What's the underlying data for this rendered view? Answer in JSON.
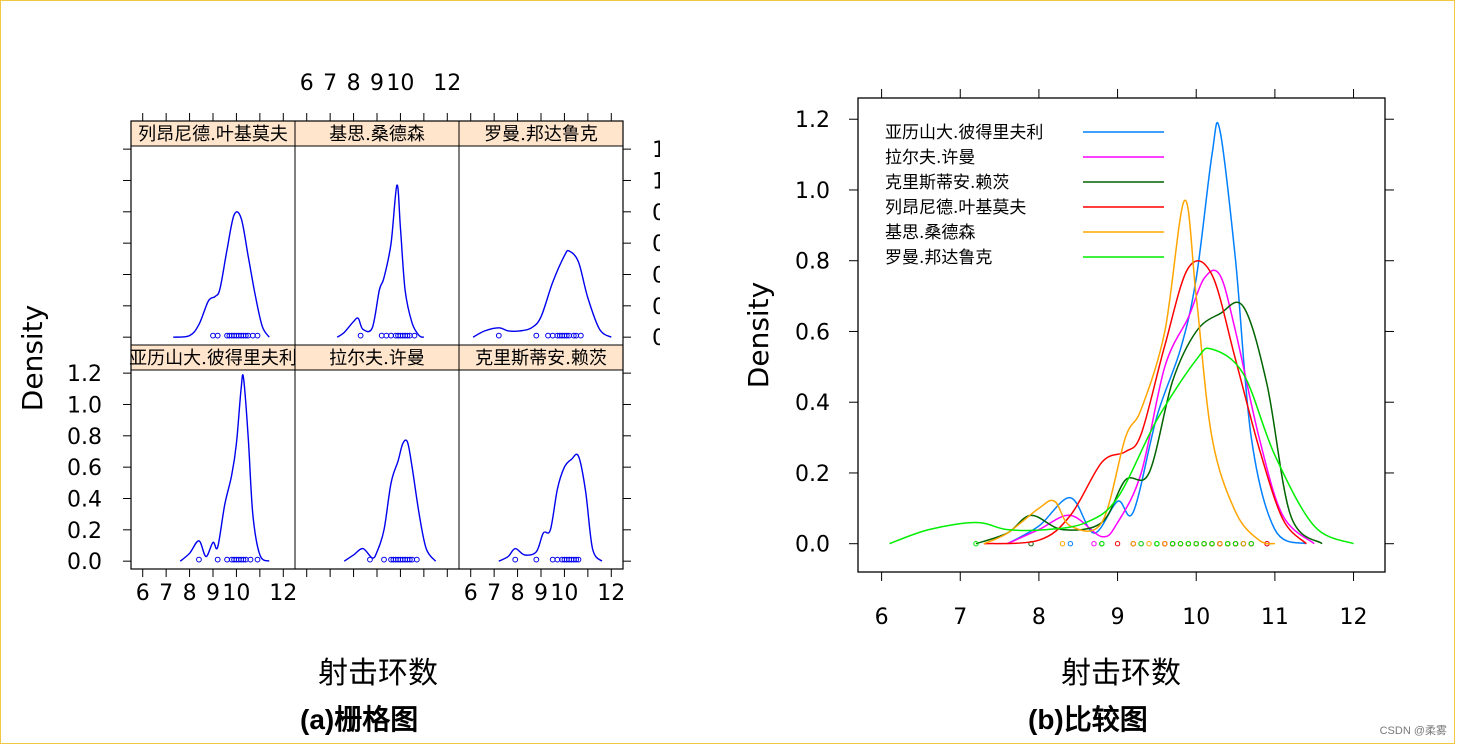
{
  "chart_data": [
    {
      "type": "line",
      "title": "",
      "xlabel": "射击环数",
      "ylabel": "Density",
      "xlim": [
        5.5,
        12.5
      ],
      "ylim": [
        -0.05,
        1.22
      ],
      "xticks": [
        6,
        7,
        8,
        9,
        10,
        12
      ],
      "yticks": [
        0.0,
        0.2,
        0.4,
        0.6,
        0.8,
        1.0,
        1.2
      ],
      "layout": "2x3 lattice grid",
      "line_color": "#0000ee",
      "strip_color": "#ffe5cc",
      "panels": [
        {
          "name": "列昂尼德.叶基莫夫",
          "x": [
            7.3,
            8.0,
            8.4,
            8.8,
            9.1,
            9.3,
            9.6,
            9.9,
            10.2,
            10.5,
            10.8,
            11.1,
            11.4
          ],
          "y": [
            0.0,
            0.01,
            0.08,
            0.23,
            0.26,
            0.31,
            0.56,
            0.78,
            0.76,
            0.52,
            0.27,
            0.07,
            0.0
          ],
          "points": [
            9.0,
            9.2,
            9.6,
            9.7,
            9.8,
            9.9,
            10.0,
            10.1,
            10.2,
            10.3,
            10.4,
            10.5,
            10.7,
            10.9
          ]
        },
        {
          "name": "基思.桑德森",
          "x": [
            7.3,
            7.6,
            8.0,
            8.2,
            8.4,
            8.8,
            9.1,
            9.3,
            9.6,
            9.85,
            10.0,
            10.2,
            10.5,
            10.8,
            11.0
          ],
          "y": [
            0.0,
            0.03,
            0.1,
            0.12,
            0.05,
            0.06,
            0.3,
            0.38,
            0.6,
            0.97,
            0.7,
            0.3,
            0.09,
            0.01,
            0.0
          ],
          "points": [
            8.3,
            9.2,
            9.4,
            9.6,
            9.8,
            9.9,
            10.0,
            10.1,
            10.2,
            10.3,
            10.4,
            10.6
          ]
        },
        {
          "name": "罗曼.邦达鲁克",
          "x": [
            6.1,
            6.6,
            7.2,
            7.6,
            8.1,
            8.6,
            9.0,
            9.5,
            10.0,
            10.2,
            10.6,
            11.0,
            11.5,
            12.0
          ],
          "y": [
            0.0,
            0.04,
            0.06,
            0.04,
            0.04,
            0.06,
            0.13,
            0.35,
            0.52,
            0.55,
            0.48,
            0.25,
            0.05,
            0.0
          ],
          "points": [
            7.2,
            8.8,
            9.3,
            9.5,
            9.7,
            9.8,
            9.9,
            10.0,
            10.1,
            10.2,
            10.4,
            10.5,
            10.7
          ]
        },
        {
          "name": "亚历山大.彼得里夫利",
          "x": [
            7.6,
            8.0,
            8.4,
            8.7,
            9.0,
            9.2,
            9.5,
            9.8,
            10.0,
            10.2,
            10.3,
            10.5,
            10.7,
            11.0,
            11.4
          ],
          "y": [
            0.0,
            0.05,
            0.13,
            0.03,
            0.12,
            0.09,
            0.36,
            0.55,
            0.75,
            1.1,
            1.17,
            0.8,
            0.3,
            0.04,
            0.0
          ],
          "points": [
            8.4,
            9.2,
            9.6,
            9.8,
            9.9,
            10.0,
            10.1,
            10.2,
            10.3,
            10.4,
            10.6,
            10.9
          ]
        },
        {
          "name": "拉尔夫.许曼",
          "x": [
            7.6,
            8.0,
            8.4,
            8.8,
            9.0,
            9.3,
            9.6,
            9.9,
            10.1,
            10.3,
            10.5,
            10.8,
            11.1,
            11.5
          ],
          "y": [
            0.0,
            0.04,
            0.08,
            0.02,
            0.06,
            0.2,
            0.5,
            0.64,
            0.75,
            0.76,
            0.6,
            0.3,
            0.08,
            0.0
          ],
          "points": [
            8.7,
            9.3,
            9.6,
            9.7,
            9.8,
            9.9,
            10.0,
            10.1,
            10.2,
            10.3,
            10.4,
            10.5,
            10.7
          ]
        },
        {
          "name": "克里斯蒂安.赖茨",
          "x": [
            7.2,
            7.6,
            7.9,
            8.3,
            8.8,
            9.1,
            9.4,
            9.7,
            10.0,
            10.3,
            10.6,
            10.9,
            11.2,
            11.6
          ],
          "y": [
            0.0,
            0.03,
            0.08,
            0.04,
            0.06,
            0.18,
            0.2,
            0.46,
            0.6,
            0.65,
            0.67,
            0.45,
            0.08,
            0.0
          ],
          "points": [
            7.9,
            8.8,
            9.5,
            9.7,
            9.9,
            10.0,
            10.1,
            10.2,
            10.3,
            10.4,
            10.5,
            10.6
          ]
        }
      ]
    },
    {
      "type": "line",
      "title": "",
      "xlabel": "射击环数",
      "ylabel": "Density",
      "xlim": [
        5.7,
        12.4
      ],
      "ylim": [
        -0.08,
        1.26
      ],
      "xticks": [
        6,
        7,
        8,
        9,
        10,
        11,
        12
      ],
      "yticks": [
        0.0,
        0.2,
        0.4,
        0.6,
        0.8,
        1.0,
        1.2
      ],
      "legend_position": "top-left",
      "series": [
        {
          "name": "亚历山大.彼得里夫利",
          "color": "#0080ff",
          "x": [
            7.6,
            8.0,
            8.4,
            8.7,
            9.0,
            9.2,
            9.5,
            9.8,
            10.0,
            10.2,
            10.3,
            10.5,
            10.7,
            11.0,
            11.4
          ],
          "y": [
            0.0,
            0.05,
            0.13,
            0.03,
            0.12,
            0.09,
            0.36,
            0.55,
            0.75,
            1.1,
            1.17,
            0.8,
            0.3,
            0.04,
            0.0
          ],
          "points": [
            8.4,
            9.2,
            9.6,
            9.8,
            9.9,
            10.0,
            10.1,
            10.2,
            10.3,
            10.4,
            10.6,
            10.9
          ]
        },
        {
          "name": "拉尔夫.许曼",
          "color": "#ff00ff",
          "x": [
            7.6,
            8.0,
            8.4,
            8.8,
            9.0,
            9.3,
            9.6,
            9.9,
            10.1,
            10.3,
            10.5,
            10.8,
            11.1,
            11.5
          ],
          "y": [
            0.0,
            0.04,
            0.08,
            0.02,
            0.06,
            0.2,
            0.5,
            0.64,
            0.75,
            0.76,
            0.6,
            0.3,
            0.08,
            0.0
          ],
          "points": [
            8.7,
            9.3,
            9.6,
            9.7,
            9.8,
            9.9,
            10.0,
            10.1,
            10.2,
            10.3,
            10.4,
            10.5,
            10.7
          ]
        },
        {
          "name": "克里斯蒂安.赖茨",
          "color": "#006400",
          "x": [
            7.2,
            7.6,
            7.9,
            8.3,
            8.8,
            9.1,
            9.4,
            9.7,
            10.0,
            10.3,
            10.6,
            10.9,
            11.2,
            11.6
          ],
          "y": [
            0.0,
            0.03,
            0.08,
            0.04,
            0.06,
            0.18,
            0.2,
            0.46,
            0.6,
            0.65,
            0.67,
            0.45,
            0.08,
            0.0
          ],
          "points": [
            7.9,
            8.8,
            9.5,
            9.7,
            9.9,
            10.0,
            10.1,
            10.2,
            10.3,
            10.4,
            10.5,
            10.6
          ]
        },
        {
          "name": "列昂尼德.叶基莫夫",
          "color": "#ff0000",
          "x": [
            7.3,
            8.0,
            8.4,
            8.8,
            9.1,
            9.3,
            9.6,
            9.9,
            10.2,
            10.5,
            10.8,
            11.1,
            11.4
          ],
          "y": [
            0.0,
            0.01,
            0.08,
            0.23,
            0.26,
            0.31,
            0.56,
            0.78,
            0.76,
            0.52,
            0.27,
            0.07,
            0.0
          ],
          "points": [
            9.0,
            9.2,
            9.6,
            9.7,
            9.8,
            9.9,
            10.0,
            10.1,
            10.2,
            10.3,
            10.4,
            10.5,
            10.7,
            10.9
          ]
        },
        {
          "name": "基思.桑德森",
          "color": "#ffa500",
          "x": [
            7.3,
            7.6,
            8.0,
            8.2,
            8.4,
            8.8,
            9.1,
            9.3,
            9.6,
            9.85,
            10.0,
            10.2,
            10.5,
            10.8,
            11.0
          ],
          "y": [
            0.0,
            0.03,
            0.1,
            0.12,
            0.05,
            0.06,
            0.3,
            0.38,
            0.6,
            0.97,
            0.7,
            0.3,
            0.09,
            0.01,
            0.0
          ],
          "points": [
            8.3,
            9.2,
            9.4,
            9.6,
            9.8,
            9.9,
            10.0,
            10.1,
            10.2,
            10.3,
            10.4,
            10.6
          ]
        },
        {
          "name": "罗曼.邦达鲁克",
          "color": "#00ee00",
          "x": [
            6.1,
            6.6,
            7.2,
            7.6,
            8.1,
            8.6,
            9.0,
            9.5,
            10.0,
            10.2,
            10.6,
            11.0,
            11.5,
            12.0
          ],
          "y": [
            0.0,
            0.04,
            0.06,
            0.04,
            0.04,
            0.06,
            0.13,
            0.35,
            0.52,
            0.55,
            0.48,
            0.25,
            0.05,
            0.0
          ],
          "points": [
            7.2,
            8.8,
            9.3,
            9.5,
            9.7,
            9.8,
            9.9,
            10.0,
            10.1,
            10.2,
            10.4,
            10.5,
            10.7
          ]
        }
      ]
    }
  ],
  "captions": {
    "left_prefix": "(a)",
    "left_text": "栅格图",
    "right_prefix": "(b)",
    "right_text": "比较图"
  },
  "watermark": "CSDN @柔雾"
}
